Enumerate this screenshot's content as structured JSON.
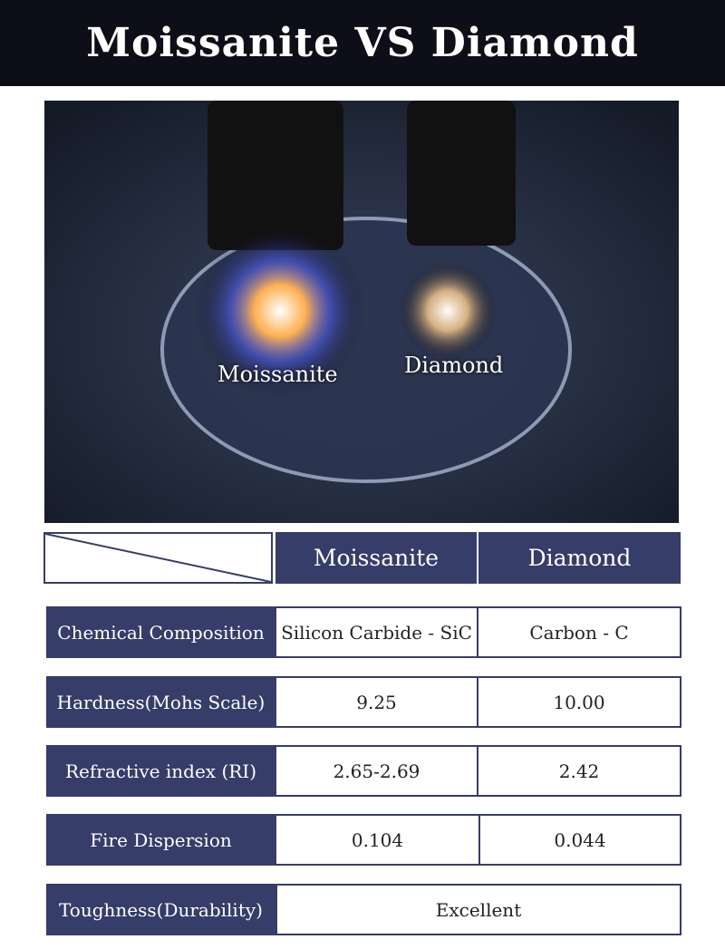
{
  "title": "Moissanite VS Diamond",
  "photo": {
    "label_left": "Moissanite",
    "label_right": "Diamond"
  },
  "table": {
    "columns": [
      "Moissanite",
      "Diamond"
    ],
    "rows": [
      {
        "label": "Chemical Composition",
        "moissanite": "Silicon Carbide - SiC",
        "diamond": "Carbon - C"
      },
      {
        "label": "Hardness(Mohs Scale)",
        "moissanite": "9.25",
        "diamond": "10.00"
      },
      {
        "label": "Refractive index (RI)",
        "moissanite": "2.65-2.69",
        "diamond": "2.42"
      },
      {
        "label": "Fire Dispersion",
        "moissanite": "0.104",
        "diamond": "0.044"
      },
      {
        "label": "Toughness(Durability)",
        "both": "Excellent"
      }
    ]
  },
  "colors": {
    "navy": "#363d69",
    "header_bg": "#0d0e17"
  }
}
